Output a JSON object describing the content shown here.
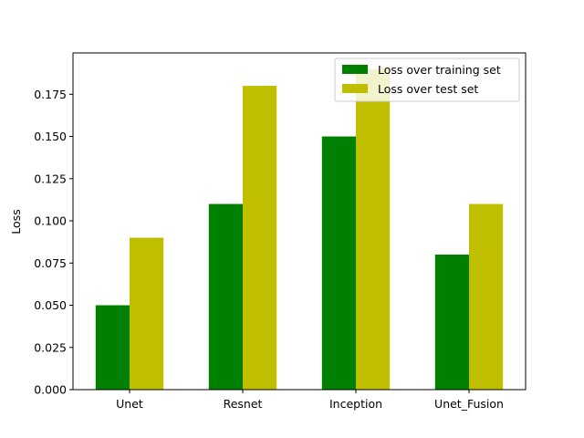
{
  "chart_data": {
    "type": "bar",
    "title": "",
    "xlabel": "",
    "ylabel": "Loss",
    "categories": [
      "Unet",
      "Resnet",
      "Inception",
      "Unet_Fusion"
    ],
    "series": [
      {
        "name": "Loss over training set",
        "color": "#008000",
        "values": [
          0.05,
          0.11,
          0.15,
          0.08
        ]
      },
      {
        "name": "Loss over test set",
        "color": "#bfbf00",
        "values": [
          0.09,
          0.18,
          0.19,
          0.11
        ]
      }
    ],
    "ylim": [
      0,
      0.1995
    ],
    "yticks": [
      "0.000",
      "0.025",
      "0.050",
      "0.075",
      "0.100",
      "0.125",
      "0.150",
      "0.175"
    ],
    "grid": false,
    "legend_position": "top-right"
  }
}
